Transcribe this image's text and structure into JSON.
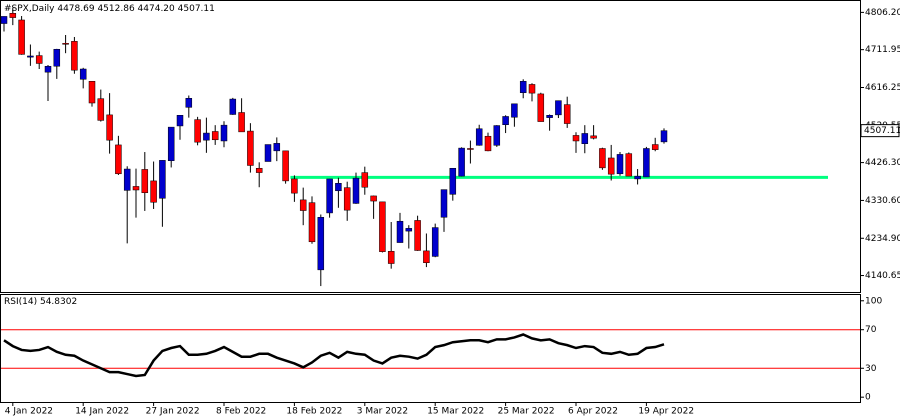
{
  "chart_data": [
    {
      "type": "candlestick",
      "title": "#SPX,Daily",
      "ohlc_labels": [
        "4478.69",
        "4512.86",
        "4474.20",
        "4507.11"
      ],
      "categories": [
        null,
        "4 Jan 2022",
        null,
        null,
        null,
        null,
        null,
        null,
        null,
        "14 Jan 2022",
        null,
        null,
        null,
        null,
        null,
        null,
        null,
        "27 Jan 2022",
        null,
        null,
        null,
        null,
        null,
        null,
        null,
        "8 Feb 2022",
        null,
        null,
        null,
        null,
        null,
        null,
        null,
        "18 Feb 2022",
        null,
        null,
        null,
        null,
        null,
        null,
        null,
        "3 Mar 2022",
        null,
        null,
        null,
        null,
        null,
        null,
        null,
        "15 Mar 2022",
        null,
        null,
        null,
        null,
        null,
        null,
        null,
        "25 Mar 2022",
        null,
        null,
        null,
        null,
        null,
        null,
        null,
        "6 Apr 2022",
        null,
        null,
        null,
        null,
        null,
        null,
        null,
        "19 Apr 2022",
        null,
        null
      ],
      "open": [
        4778,
        4804,
        4787,
        4693,
        4697,
        4655,
        4670,
        4728,
        4733,
        4637,
        4632,
        4588,
        4547,
        4471,
        4356,
        4366,
        4409,
        4380,
        4336,
        4431,
        4519,
        4566,
        4535,
        4483,
        4505,
        4481,
        4548,
        4553,
        4506,
        4412,
        4429,
        4456,
        4456,
        4385,
        4332,
        4325,
        4155,
        4299,
        4355,
        4363,
        4323,
        4401,
        4342,
        4327,
        4202,
        4224,
        4253,
        4280,
        4203,
        4189,
        4288,
        4346,
        4392,
        4462,
        4470,
        4493,
        4470,
        4522,
        4541,
        4603,
        4624,
        4600,
        4540,
        4547,
        4573,
        4495,
        4474,
        4494,
        4462,
        4438,
        4398,
        4449,
        4385,
        4390,
        4472,
        4478.69
      ],
      "high": [
        4796,
        4818,
        4797,
        4725,
        4707,
        4673,
        4714,
        4749,
        4744,
        4666,
        4632,
        4611,
        4602,
        4494,
        4417,
        4411,
        4453,
        4429,
        4432,
        4516,
        4546,
        4596,
        4542,
        4540,
        4521,
        4531,
        4590,
        4589,
        4526,
        4427,
        4472,
        4490,
        4456,
        4394,
        4363,
        4341,
        4295,
        4385,
        4388,
        4378,
        4401,
        4416,
        4343,
        4327,
        4276,
        4299,
        4268,
        4292,
        4247,
        4272,
        4358,
        4412,
        4465,
        4482,
        4522,
        4502,
        4521,
        4546,
        4575,
        4637,
        4627,
        4603,
        4548,
        4583,
        4593,
        4503,
        4521,
        4521,
        4464,
        4471,
        4453,
        4452,
        4410,
        4466,
        4489,
        4512.86
      ],
      "low": [
        4758,
        4774,
        4699,
        4671,
        4663,
        4582,
        4638,
        4703,
        4651,
        4614,
        4568,
        4530,
        4449,
        4395,
        4222,
        4287,
        4304,
        4309,
        4264,
        4414,
        4484,
        4540,
        4470,
        4451,
        4471,
        4465,
        4547,
        4505,
        4401,
        4364,
        4429,
        4430,
        4373,
        4327,
        4268,
        4221,
        4114,
        4287,
        4312,
        4279,
        4322,
        4345,
        4284,
        4199,
        4158,
        4224,
        4209,
        4203,
        4162,
        4187,
        4251,
        4330,
        4391,
        4424,
        4469,
        4455,
        4466,
        4501,
        4517,
        4589,
        4581,
        4530,
        4507,
        4539,
        4514,
        4451,
        4450,
        4485,
        4408,
        4381,
        4393,
        4392,
        4371,
        4390,
        4455,
        4474.2
      ],
      "close": [
        4796,
        4793,
        4700,
        4696,
        4677,
        4670,
        4713,
        4726,
        4660,
        4663,
        4577,
        4533,
        4483,
        4398,
        4410,
        4357,
        4350,
        4326,
        4432,
        4516,
        4546,
        4589,
        4478,
        4501,
        4484,
        4521,
        4587,
        4504,
        4419,
        4401,
        4472,
        4475,
        4380,
        4349,
        4305,
        4226,
        4288,
        4385,
        4374,
        4306,
        4387,
        4364,
        4329,
        4201,
        4171,
        4278,
        4260,
        4204,
        4173,
        4262,
        4358,
        4412,
        4463,
        4461,
        4512,
        4456,
        4520,
        4543,
        4575,
        4632,
        4602,
        4530,
        4546,
        4583,
        4525,
        4481,
        4500,
        4488,
        4413,
        4397,
        4447,
        4392,
        4392,
        4462,
        4459,
        4507.11
      ],
      "up_color": "#0000cd",
      "down_color": "#ff0000",
      "ylim": [
        4099,
        4835
      ],
      "yticks": [
        {
          "value": 4140.65,
          "label": "4140.65"
        },
        {
          "value": 4234.9,
          "label": "4234.90"
        },
        {
          "value": 4330.6,
          "label": "4330.60"
        },
        {
          "value": 4426.3,
          "label": "4426.30"
        },
        {
          "value": 4520.55,
          "label": "4520.55"
        },
        {
          "value": 4616.25,
          "label": "4616.25"
        },
        {
          "value": 4711.95,
          "label": "4711.95"
        },
        {
          "value": 4806.2,
          "label": "4806.20"
        }
      ],
      "support": {
        "value": 4389,
        "color": "#00ff7f"
      }
    },
    {
      "type": "line",
      "title": "RSI(14)",
      "values": [
        59,
        53,
        49,
        48,
        49,
        52,
        47,
        44,
        43,
        38,
        34,
        30,
        26,
        26,
        24,
        22,
        23,
        38,
        48,
        51,
        53,
        44,
        44,
        45,
        48,
        52,
        47,
        42,
        42,
        45,
        45,
        41,
        38,
        35,
        31,
        36,
        43,
        46,
        41,
        47,
        45,
        44,
        38,
        35,
        41,
        43,
        42,
        40,
        44,
        52,
        54,
        57,
        58,
        59,
        59,
        57,
        60,
        60,
        62,
        65,
        61,
        59,
        60,
        56,
        54,
        51,
        53,
        52,
        46,
        45,
        47,
        44,
        45,
        51,
        52,
        54.8302
      ],
      "color": "#000000",
      "ylim": [
        -5,
        106
      ],
      "yticks": [
        0,
        30,
        70,
        100
      ],
      "levels": [
        30,
        70
      ],
      "level_color": "#ff0000"
    }
  ]
}
